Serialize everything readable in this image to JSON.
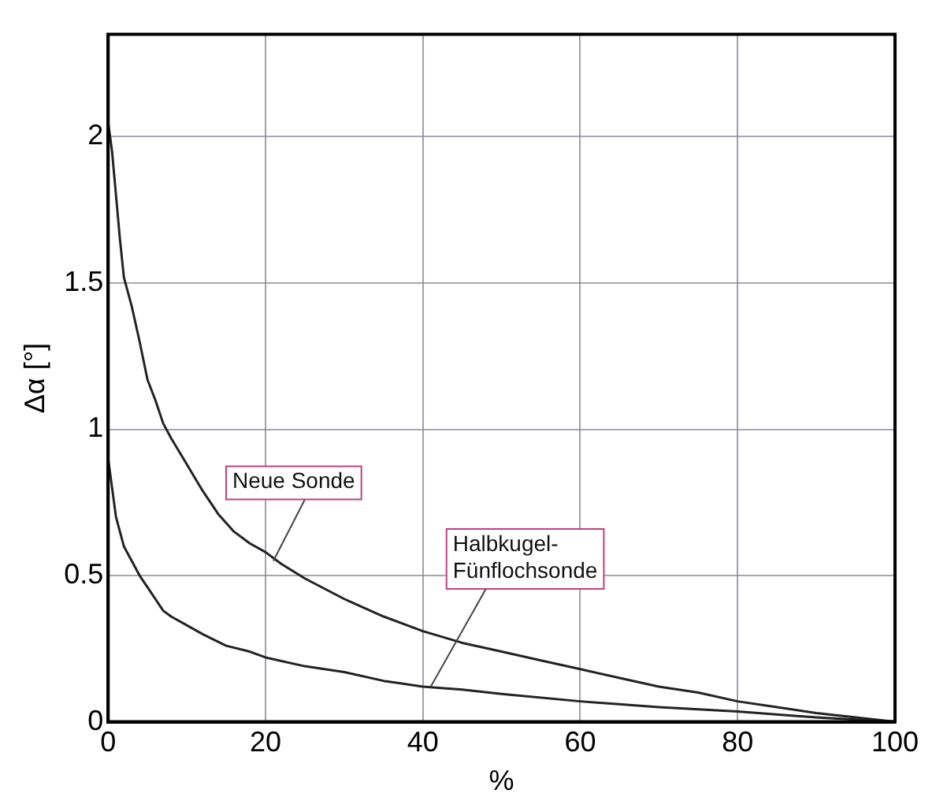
{
  "chart_data": {
    "type": "line",
    "xlabel": "%",
    "ylabel": "Δα [°]",
    "series": [
      {
        "color": "#222222",
        "x": [
          0,
          0.5,
          1,
          1.5,
          2,
          3,
          4,
          5,
          6,
          7,
          8,
          10,
          12,
          14,
          16,
          18,
          20,
          22,
          25,
          30,
          35,
          40,
          45,
          50,
          55,
          60,
          65,
          70,
          75,
          80,
          85,
          90,
          95,
          100
        ],
        "values": [
          2.05,
          1.95,
          1.8,
          1.65,
          1.52,
          1.42,
          1.3,
          1.17,
          1.1,
          1.02,
          0.97,
          0.88,
          0.79,
          0.71,
          0.65,
          0.61,
          0.58,
          0.54,
          0.49,
          0.42,
          0.36,
          0.31,
          0.27,
          0.24,
          0.21,
          0.18,
          0.15,
          0.12,
          0.1,
          0.07,
          0.05,
          0.03,
          0.015,
          0
        ]
      },
      {
        "color": "#222222",
        "x": [
          0,
          1,
          2,
          3,
          4,
          5,
          6,
          7,
          8,
          10,
          12,
          15,
          18,
          20,
          25,
          30,
          35,
          40,
          45,
          50,
          60,
          70,
          80,
          90,
          100
        ],
        "values": [
          0.9,
          0.7,
          0.6,
          0.55,
          0.5,
          0.46,
          0.42,
          0.38,
          0.36,
          0.33,
          0.3,
          0.26,
          0.24,
          0.22,
          0.19,
          0.17,
          0.14,
          0.12,
          0.11,
          0.095,
          0.07,
          0.05,
          0.035,
          0.015,
          0
        ]
      }
    ],
    "annotations": [
      {
        "text": "Neue Sonde",
        "x": 21,
        "y": 0.55
      },
      {
        "text": "Halbkugel-\nFünflochsonde",
        "x": 41,
        "y": 0.12
      }
    ],
    "xlim": [
      0,
      100
    ],
    "xticks": [
      0,
      20,
      40,
      60,
      80,
      100
    ],
    "ylim": [
      0,
      2.35
    ],
    "yticks": [
      0,
      0.5,
      1,
      1.5,
      2
    ],
    "grid": true,
    "legend": false,
    "marker": "none",
    "line_style": "solid"
  }
}
